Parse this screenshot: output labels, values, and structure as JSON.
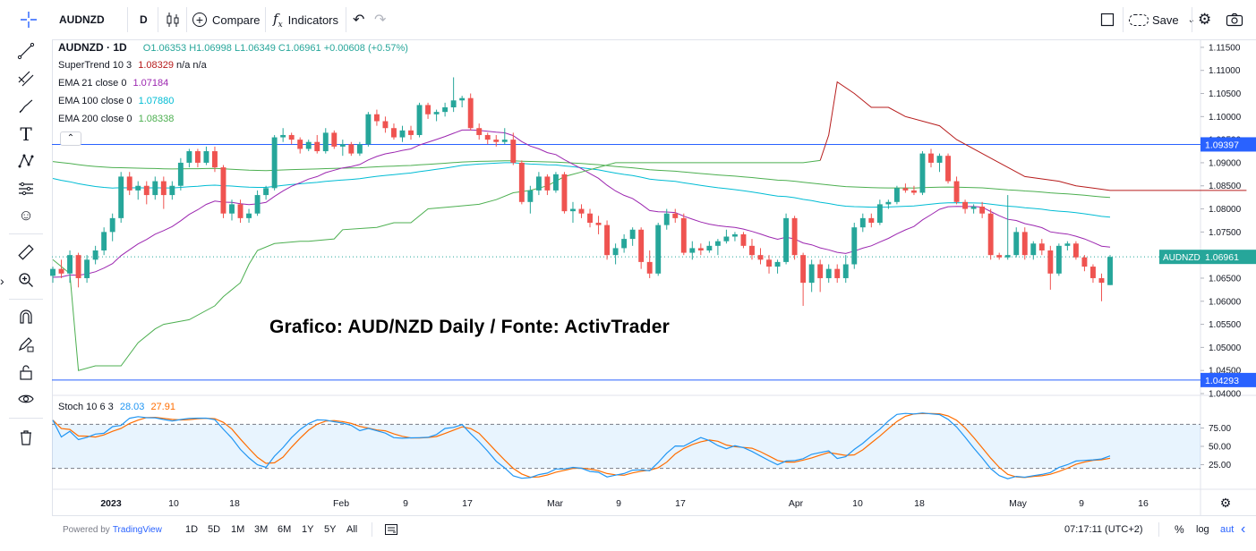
{
  "toolbar": {
    "symbol": "AUDNZD",
    "interval": "D",
    "compare_label": "Compare",
    "indicators_label": "Indicators",
    "save_label": "Save"
  },
  "legend": {
    "title": "AUDNZD · 1D",
    "open": "O1.06353",
    "high": "H1.06998",
    "low": "L1.06349",
    "close": "C1.06961",
    "change": "+0.00608 (+0.57%)",
    "indicators": [
      {
        "name": "SuperTrend 10 3",
        "value": "1.08329",
        "extra": "n/a n/a",
        "color": "#b71c1c"
      },
      {
        "name": "EMA 21 close 0",
        "value": "1.07184",
        "color": "#9c27b0"
      },
      {
        "name": "EMA 100 close 0",
        "value": "1.07880",
        "color": "#00bcd4"
      },
      {
        "name": "EMA 200 close 0",
        "value": "1.08338",
        "color": "#4caf50"
      }
    ],
    "stoch": {
      "name": "Stoch 10 6 3",
      "k": "28.03",
      "d": "27.91",
      "k_color": "#2196f3",
      "d_color": "#ff6d00"
    }
  },
  "watermark": "Grafico: AUD/NZD Daily / Fonte: ActivTrader",
  "chart_data": {
    "type": "candlestick",
    "symbol": "AUDNZD",
    "price_axis_ticks": [
      "1.11500",
      "1.11000",
      "1.10500",
      "1.10000",
      "1.09500",
      "1.09000",
      "1.08500",
      "1.08000",
      "1.07500",
      "1.07000",
      "1.06500",
      "1.06000",
      "1.05500",
      "1.05000",
      "1.04500",
      "1.04000"
    ],
    "price_range": [
      1.04,
      1.1175
    ],
    "time_axis_labels": [
      "2023",
      "10",
      "18",
      "Feb",
      "9",
      "17",
      "Mar",
      "9",
      "17",
      "Apr",
      "10",
      "18",
      "May",
      "9",
      "16"
    ],
    "candles": [
      {
        "o": 1.0655,
        "h": 1.0675,
        "l": 1.064,
        "c": 1.067
      },
      {
        "o": 1.067,
        "h": 1.069,
        "l": 1.065,
        "c": 1.066
      },
      {
        "o": 1.066,
        "h": 1.071,
        "l": 1.064,
        "c": 1.07
      },
      {
        "o": 1.07,
        "h": 1.0705,
        "l": 1.063,
        "c": 1.065
      },
      {
        "o": 1.065,
        "h": 1.07,
        "l": 1.064,
        "c": 1.069
      },
      {
        "o": 1.069,
        "h": 1.072,
        "l": 1.068,
        "c": 1.071
      },
      {
        "o": 1.071,
        "h": 1.076,
        "l": 1.07,
        "c": 1.075
      },
      {
        "o": 1.075,
        "h": 1.079,
        "l": 1.073,
        "c": 1.078
      },
      {
        "o": 1.078,
        "h": 1.088,
        "l": 1.077,
        "c": 1.087
      },
      {
        "o": 1.087,
        "h": 1.088,
        "l": 1.083,
        "c": 1.084
      },
      {
        "o": 1.084,
        "h": 1.086,
        "l": 1.082,
        "c": 1.085
      },
      {
        "o": 1.085,
        "h": 1.086,
        "l": 1.081,
        "c": 1.083
      },
      {
        "o": 1.083,
        "h": 1.087,
        "l": 1.082,
        "c": 1.086
      },
      {
        "o": 1.086,
        "h": 1.087,
        "l": 1.08,
        "c": 1.083
      },
      {
        "o": 1.083,
        "h": 1.086,
        "l": 1.082,
        "c": 1.085
      },
      {
        "o": 1.085,
        "h": 1.091,
        "l": 1.084,
        "c": 1.09
      },
      {
        "o": 1.09,
        "h": 1.093,
        "l": 1.089,
        "c": 1.0925
      },
      {
        "o": 1.0925,
        "h": 1.093,
        "l": 1.089,
        "c": 1.09
      },
      {
        "o": 1.09,
        "h": 1.0935,
        "l": 1.0895,
        "c": 1.0925
      },
      {
        "o": 1.0925,
        "h": 1.0935,
        "l": 1.088,
        "c": 1.089
      },
      {
        "o": 1.089,
        "h": 1.0895,
        "l": 1.078,
        "c": 1.079
      },
      {
        "o": 1.079,
        "h": 1.082,
        "l": 1.0775,
        "c": 1.081
      },
      {
        "o": 1.081,
        "h": 1.082,
        "l": 1.077,
        "c": 1.078
      },
      {
        "o": 1.078,
        "h": 1.08,
        "l": 1.077,
        "c": 1.079
      },
      {
        "o": 1.079,
        "h": 1.084,
        "l": 1.0785,
        "c": 1.083
      },
      {
        "o": 1.083,
        "h": 1.085,
        "l": 1.082,
        "c": 1.0845
      },
      {
        "o": 1.0845,
        "h": 1.096,
        "l": 1.084,
        "c": 1.0955
      },
      {
        "o": 1.0955,
        "h": 1.0975,
        "l": 1.0945,
        "c": 1.096
      },
      {
        "o": 1.096,
        "h": 1.0965,
        "l": 1.094,
        "c": 1.095
      },
      {
        "o": 1.095,
        "h": 1.0955,
        "l": 1.092,
        "c": 1.093
      },
      {
        "o": 1.093,
        "h": 1.095,
        "l": 1.0925,
        "c": 1.0945
      },
      {
        "o": 1.0945,
        "h": 1.096,
        "l": 1.092,
        "c": 1.0925
      },
      {
        "o": 1.0925,
        "h": 1.0975,
        "l": 1.092,
        "c": 1.0965
      },
      {
        "o": 1.0965,
        "h": 1.097,
        "l": 1.093,
        "c": 1.0935
      },
      {
        "o": 1.0935,
        "h": 1.095,
        "l": 1.0915,
        "c": 1.094
      },
      {
        "o": 1.094,
        "h": 1.0945,
        "l": 1.0915,
        "c": 1.092
      },
      {
        "o": 1.092,
        "h": 1.0945,
        "l": 1.0915,
        "c": 1.094
      },
      {
        "o": 1.094,
        "h": 1.101,
        "l": 1.0935,
        "c": 1.1005
      },
      {
        "o": 1.1005,
        "h": 1.1015,
        "l": 1.098,
        "c": 1.099
      },
      {
        "o": 1.099,
        "h": 1.1,
        "l": 1.0965,
        "c": 1.0975
      },
      {
        "o": 1.0975,
        "h": 1.0985,
        "l": 1.095,
        "c": 1.0955
      },
      {
        "o": 1.0955,
        "h": 1.098,
        "l": 1.0945,
        "c": 1.097
      },
      {
        "o": 1.097,
        "h": 1.098,
        "l": 1.095,
        "c": 1.096
      },
      {
        "o": 1.096,
        "h": 1.103,
        "l": 1.0955,
        "c": 1.1025
      },
      {
        "o": 1.1025,
        "h": 1.103,
        "l": 1.0995,
        "c": 1.1005
      },
      {
        "o": 1.1005,
        "h": 1.1015,
        "l": 1.099,
        "c": 1.101
      },
      {
        "o": 1.101,
        "h": 1.103,
        "l": 1.1,
        "c": 1.102
      },
      {
        "o": 1.102,
        "h": 1.1085,
        "l": 1.101,
        "c": 1.1035
      },
      {
        "o": 1.1035,
        "h": 1.1045,
        "l": 1.102,
        "c": 1.104
      },
      {
        "o": 1.104,
        "h": 1.105,
        "l": 1.097,
        "c": 1.0975
      },
      {
        "o": 1.0975,
        "h": 1.0985,
        "l": 1.095,
        "c": 1.096
      },
      {
        "o": 1.096,
        "h": 1.0965,
        "l": 1.094,
        "c": 1.095
      },
      {
        "o": 1.095,
        "h": 1.096,
        "l": 1.0935,
        "c": 1.0945
      },
      {
        "o": 1.0945,
        "h": 1.0975,
        "l": 1.094,
        "c": 1.095
      },
      {
        "o": 1.095,
        "h": 1.0965,
        "l": 1.0895,
        "c": 1.09
      },
      {
        "o": 1.09,
        "h": 1.0905,
        "l": 1.081,
        "c": 1.0815
      },
      {
        "o": 1.0815,
        "h": 1.085,
        "l": 1.079,
        "c": 1.084
      },
      {
        "o": 1.084,
        "h": 1.088,
        "l": 1.083,
        "c": 1.087
      },
      {
        "o": 1.087,
        "h": 1.0875,
        "l": 1.083,
        "c": 1.084
      },
      {
        "o": 1.084,
        "h": 1.088,
        "l": 1.0835,
        "c": 1.0875
      },
      {
        "o": 1.0875,
        "h": 1.088,
        "l": 1.079,
        "c": 1.0795
      },
      {
        "o": 1.0795,
        "h": 1.0815,
        "l": 1.077,
        "c": 1.08
      },
      {
        "o": 1.08,
        "h": 1.081,
        "l": 1.078,
        "c": 1.079
      },
      {
        "o": 1.079,
        "h": 1.08,
        "l": 1.076,
        "c": 1.077
      },
      {
        "o": 1.077,
        "h": 1.0785,
        "l": 1.0745,
        "c": 1.0765
      },
      {
        "o": 1.0765,
        "h": 1.0775,
        "l": 1.069,
        "c": 1.07
      },
      {
        "o": 1.07,
        "h": 1.0725,
        "l": 1.068,
        "c": 1.0715
      },
      {
        "o": 1.0715,
        "h": 1.0745,
        "l": 1.0705,
        "c": 1.0735
      },
      {
        "o": 1.0735,
        "h": 1.076,
        "l": 1.072,
        "c": 1.0755
      },
      {
        "o": 1.0755,
        "h": 1.076,
        "l": 1.067,
        "c": 1.0685
      },
      {
        "o": 1.0685,
        "h": 1.071,
        "l": 1.065,
        "c": 1.066
      },
      {
        "o": 1.066,
        "h": 1.077,
        "l": 1.0655,
        "c": 1.0765
      },
      {
        "o": 1.0765,
        "h": 1.08,
        "l": 1.0755,
        "c": 1.079
      },
      {
        "o": 1.079,
        "h": 1.08,
        "l": 1.077,
        "c": 1.078
      },
      {
        "o": 1.078,
        "h": 1.079,
        "l": 1.07,
        "c": 1.0705
      },
      {
        "o": 1.0705,
        "h": 1.073,
        "l": 1.069,
        "c": 1.0715
      },
      {
        "o": 1.0715,
        "h": 1.0725,
        "l": 1.07,
        "c": 1.071
      },
      {
        "o": 1.071,
        "h": 1.073,
        "l": 1.0705,
        "c": 1.072
      },
      {
        "o": 1.072,
        "h": 1.0735,
        "l": 1.07,
        "c": 1.073
      },
      {
        "o": 1.073,
        "h": 1.0755,
        "l": 1.0725,
        "c": 1.074
      },
      {
        "o": 1.074,
        "h": 1.075,
        "l": 1.073,
        "c": 1.0745
      },
      {
        "o": 1.0745,
        "h": 1.075,
        "l": 1.0715,
        "c": 1.072
      },
      {
        "o": 1.072,
        "h": 1.0735,
        "l": 1.069,
        "c": 1.07
      },
      {
        "o": 1.07,
        "h": 1.0715,
        "l": 1.068,
        "c": 1.069
      },
      {
        "o": 1.069,
        "h": 1.07,
        "l": 1.066,
        "c": 1.0675
      },
      {
        "o": 1.0675,
        "h": 1.069,
        "l": 1.066,
        "c": 1.0685
      },
      {
        "o": 1.0685,
        "h": 1.079,
        "l": 1.068,
        "c": 1.078
      },
      {
        "o": 1.078,
        "h": 1.0785,
        "l": 1.069,
        "c": 1.07
      },
      {
        "o": 1.07,
        "h": 1.0705,
        "l": 1.059,
        "c": 1.064
      },
      {
        "o": 1.064,
        "h": 1.069,
        "l": 1.062,
        "c": 1.068
      },
      {
        "o": 1.068,
        "h": 1.069,
        "l": 1.062,
        "c": 1.065
      },
      {
        "o": 1.065,
        "h": 1.068,
        "l": 1.064,
        "c": 1.067
      },
      {
        "o": 1.067,
        "h": 1.068,
        "l": 1.064,
        "c": 1.065
      },
      {
        "o": 1.065,
        "h": 1.07,
        "l": 1.064,
        "c": 1.068
      },
      {
        "o": 1.068,
        "h": 1.077,
        "l": 1.067,
        "c": 1.076
      },
      {
        "o": 1.076,
        "h": 1.079,
        "l": 1.075,
        "c": 1.078
      },
      {
        "o": 1.078,
        "h": 1.079,
        "l": 1.076,
        "c": 1.077
      },
      {
        "o": 1.077,
        "h": 1.082,
        "l": 1.0765,
        "c": 1.081
      },
      {
        "o": 1.081,
        "h": 1.082,
        "l": 1.08,
        "c": 1.0815
      },
      {
        "o": 1.0815,
        "h": 1.085,
        "l": 1.081,
        "c": 1.0845
      },
      {
        "o": 1.0845,
        "h": 1.0855,
        "l": 1.0835,
        "c": 1.084
      },
      {
        "o": 1.084,
        "h": 1.085,
        "l": 1.083,
        "c": 1.0835
      },
      {
        "o": 1.0835,
        "h": 1.0925,
        "l": 1.083,
        "c": 1.092
      },
      {
        "o": 1.092,
        "h": 1.093,
        "l": 1.089,
        "c": 1.09
      },
      {
        "o": 1.09,
        "h": 1.092,
        "l": 1.088,
        "c": 1.0915
      },
      {
        "o": 1.0915,
        "h": 1.092,
        "l": 1.0855,
        "c": 1.086
      },
      {
        "o": 1.086,
        "h": 1.087,
        "l": 1.081,
        "c": 1.0815
      },
      {
        "o": 1.0815,
        "h": 1.082,
        "l": 1.079,
        "c": 1.08
      },
      {
        "o": 1.08,
        "h": 1.081,
        "l": 1.079,
        "c": 1.0805
      },
      {
        "o": 1.0805,
        "h": 1.0815,
        "l": 1.078,
        "c": 1.079
      },
      {
        "o": 1.079,
        "h": 1.08,
        "l": 1.069,
        "c": 1.07
      },
      {
        "o": 1.07,
        "h": 1.0705,
        "l": 1.069,
        "c": 1.0695
      },
      {
        "o": 1.0695,
        "h": 1.083,
        "l": 1.069,
        "c": 1.07
      },
      {
        "o": 1.07,
        "h": 1.076,
        "l": 1.0695,
        "c": 1.075
      },
      {
        "o": 1.075,
        "h": 1.076,
        "l": 1.069,
        "c": 1.07
      },
      {
        "o": 1.07,
        "h": 1.073,
        "l": 1.069,
        "c": 1.0725
      },
      {
        "o": 1.0725,
        "h": 1.0735,
        "l": 1.07,
        "c": 1.071
      },
      {
        "o": 1.071,
        "h": 1.072,
        "l": 1.0625,
        "c": 1.066
      },
      {
        "o": 1.066,
        "h": 1.0725,
        "l": 1.0655,
        "c": 1.072
      },
      {
        "o": 1.072,
        "h": 1.073,
        "l": 1.071,
        "c": 1.0725
      },
      {
        "o": 1.0725,
        "h": 1.073,
        "l": 1.069,
        "c": 1.0695
      },
      {
        "o": 1.0695,
        "h": 1.07,
        "l": 1.0665,
        "c": 1.0675
      },
      {
        "o": 1.0675,
        "h": 1.068,
        "l": 1.064,
        "c": 1.065
      },
      {
        "o": 1.065,
        "h": 1.066,
        "l": 1.06,
        "c": 1.064
      },
      {
        "o": 1.0635,
        "h": 1.07,
        "l": 1.0635,
        "c": 1.0696
      }
    ],
    "horizontal_lines": [
      {
        "price": 1.09397,
        "label": "1.09397",
        "color": "#2962ff"
      },
      {
        "price": 1.04293,
        "label": "1.04293",
        "color": "#2962ff"
      }
    ],
    "last_price": {
      "price": 1.06961,
      "label": "1.06961",
      "symbol": "AUDNZD",
      "color": "#26a69a"
    },
    "supertrend": [
      [
        0,
        1.069
      ],
      [
        2,
        1.066
      ],
      [
        3,
        1.045
      ],
      [
        5,
        1.046
      ],
      [
        8,
        1.046
      ],
      [
        10,
        1.051
      ],
      [
        12,
        1.054
      ],
      [
        13,
        1.055
      ],
      [
        16,
        1.056
      ],
      [
        19,
        1.059
      ],
      [
        20,
        1.061
      ],
      [
        22,
        1.064
      ],
      [
        23,
        1.068
      ],
      [
        24,
        1.071
      ],
      [
        26,
        1.0725
      ],
      [
        29,
        1.073
      ],
      [
        30,
        1.073
      ],
      [
        33,
        1.0735
      ],
      [
        34,
        1.0755
      ],
      [
        38,
        1.076
      ],
      [
        40,
        1.077
      ],
      [
        42,
        1.077
      ],
      [
        44,
        1.08
      ],
      [
        47,
        1.0805
      ],
      [
        50,
        1.081
      ],
      [
        52,
        1.082
      ],
      [
        54,
        1.0835
      ],
      [
        56,
        1.084
      ],
      [
        58,
        1.085
      ],
      [
        60,
        1.087
      ],
      [
        62,
        1.088
      ],
      [
        64,
        1.089
      ],
      [
        66,
        1.09
      ],
      [
        68,
        1.09
      ],
      [
        72,
        1.09
      ],
      [
        73,
        1.09
      ],
      [
        76,
        1.09
      ],
      [
        78,
        1.09
      ],
      [
        80,
        1.09
      ],
      [
        84,
        1.09
      ],
      [
        86,
        1.09
      ],
      [
        88,
        1.09
      ],
      [
        90,
        1.0905
      ],
      [
        91,
        1.096
      ],
      [
        92,
        1.1075
      ],
      [
        94,
        1.105
      ],
      [
        96,
        1.102
      ],
      [
        98,
        1.102
      ],
      [
        100,
        1.1
      ],
      [
        104,
        1.098
      ],
      [
        106,
        1.095
      ],
      [
        110,
        1.091
      ],
      [
        114,
        1.087
      ],
      [
        118,
        1.086
      ],
      [
        120,
        1.085
      ],
      [
        122,
        1.0845
      ],
      [
        124,
        1.084
      ],
      [
        126,
        1.084
      ],
      [
        130,
        1.084
      ],
      [
        134,
        1.084
      ],
      [
        140,
        1.084
      ]
    ],
    "stochastic": {
      "range": [
        0,
        100
      ],
      "ticks": [
        "75.00",
        "50.00",
        "25.00"
      ],
      "bands": [
        80,
        20
      ],
      "k_last": 28.03,
      "d_last": 27.91
    }
  },
  "bottom": {
    "powered_by": "Powered by",
    "brand": "TradingView",
    "ranges": [
      "1D",
      "5D",
      "1M",
      "3M",
      "6M",
      "1Y",
      "5Y",
      "All"
    ],
    "clock": "07:17:11 (UTC+2)",
    "percent": "%",
    "log": "log",
    "auto": "aut"
  }
}
